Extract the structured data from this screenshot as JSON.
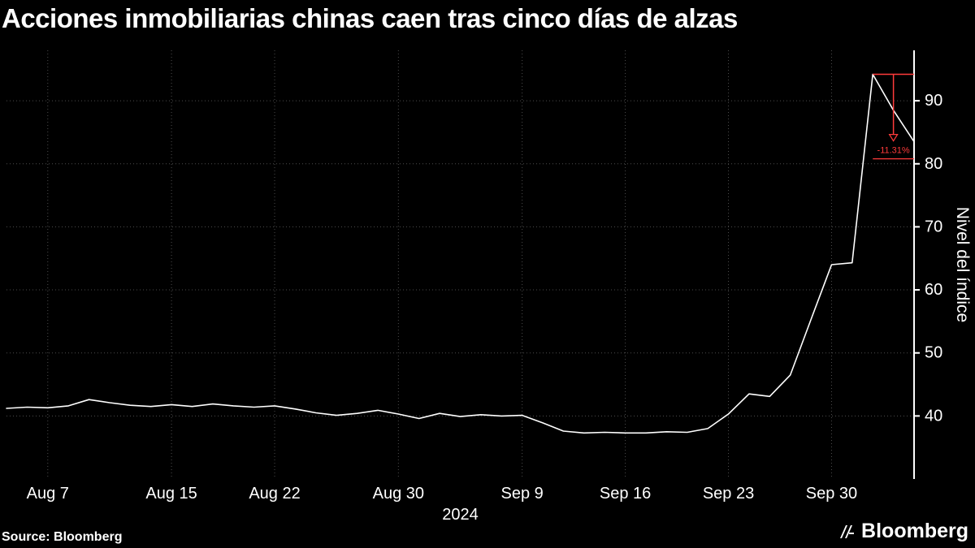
{
  "title": "Acciones inmobiliarias chinas caen tras cinco días de alzas",
  "source": "Source: Bloomberg",
  "logo_text": "Bloomberg",
  "chart_data": {
    "type": "line",
    "title": "Acciones inmobiliarias chinas caen tras cinco días de alzas",
    "ylabel": "Nivel del índice",
    "x_year_label": "2024",
    "line_color": "#ffffff",
    "grid_color": "#4d4d4d",
    "axis_color": "#ffffff",
    "annotation_color": "#ff3b3b",
    "background_color": "#000000",
    "ylim": [
      30,
      98
    ],
    "y_ticks": [
      40,
      50,
      60,
      70,
      80,
      90
    ],
    "x_dates": [
      "Aug 5",
      "Aug 6",
      "Aug 7",
      "Aug 8",
      "Aug 9",
      "Aug 12",
      "Aug 13",
      "Aug 14",
      "Aug 15",
      "Aug 16",
      "Aug 19",
      "Aug 20",
      "Aug 21",
      "Aug 22",
      "Aug 23",
      "Aug 26",
      "Aug 27",
      "Aug 28",
      "Aug 29",
      "Aug 30",
      "Sep 2",
      "Sep 3",
      "Sep 4",
      "Sep 5",
      "Sep 6",
      "Sep 9",
      "Sep 10",
      "Sep 11",
      "Sep 12",
      "Sep 13",
      "Sep 16",
      "Sep 17",
      "Sep 18",
      "Sep 19",
      "Sep 20",
      "Sep 23",
      "Sep 24",
      "Sep 25",
      "Sep 26",
      "Sep 27",
      "Sep 30",
      "Oct 1",
      "Oct 2",
      "Oct 3",
      "Oct 4"
    ],
    "values": [
      41.2,
      41.4,
      41.3,
      41.6,
      42.6,
      42.1,
      41.7,
      41.5,
      41.8,
      41.5,
      41.9,
      41.6,
      41.4,
      41.6,
      41.1,
      40.5,
      40.1,
      40.4,
      40.9,
      40.3,
      39.6,
      40.4,
      39.9,
      40.2,
      40.0,
      40.1,
      38.9,
      37.6,
      37.3,
      37.4,
      37.3,
      37.3,
      37.5,
      37.4,
      38.0,
      40.3,
      43.5,
      43.1,
      46.5,
      55.3,
      64.0,
      64.3,
      94.2,
      88.5,
      83.5
    ],
    "x_tick_indices": [
      2,
      8,
      13,
      19,
      25,
      30,
      35,
      40
    ],
    "x_tick_labels": [
      "Aug 7",
      "Aug 15",
      "Aug 22",
      "Aug 30",
      "Sep 9",
      "Sep 16",
      "Sep 23",
      "Sep 30"
    ],
    "legend_position": "none",
    "grid": "dotted",
    "annotation": {
      "label": "-11.31%",
      "from": 94.2,
      "to": 83.5
    }
  }
}
